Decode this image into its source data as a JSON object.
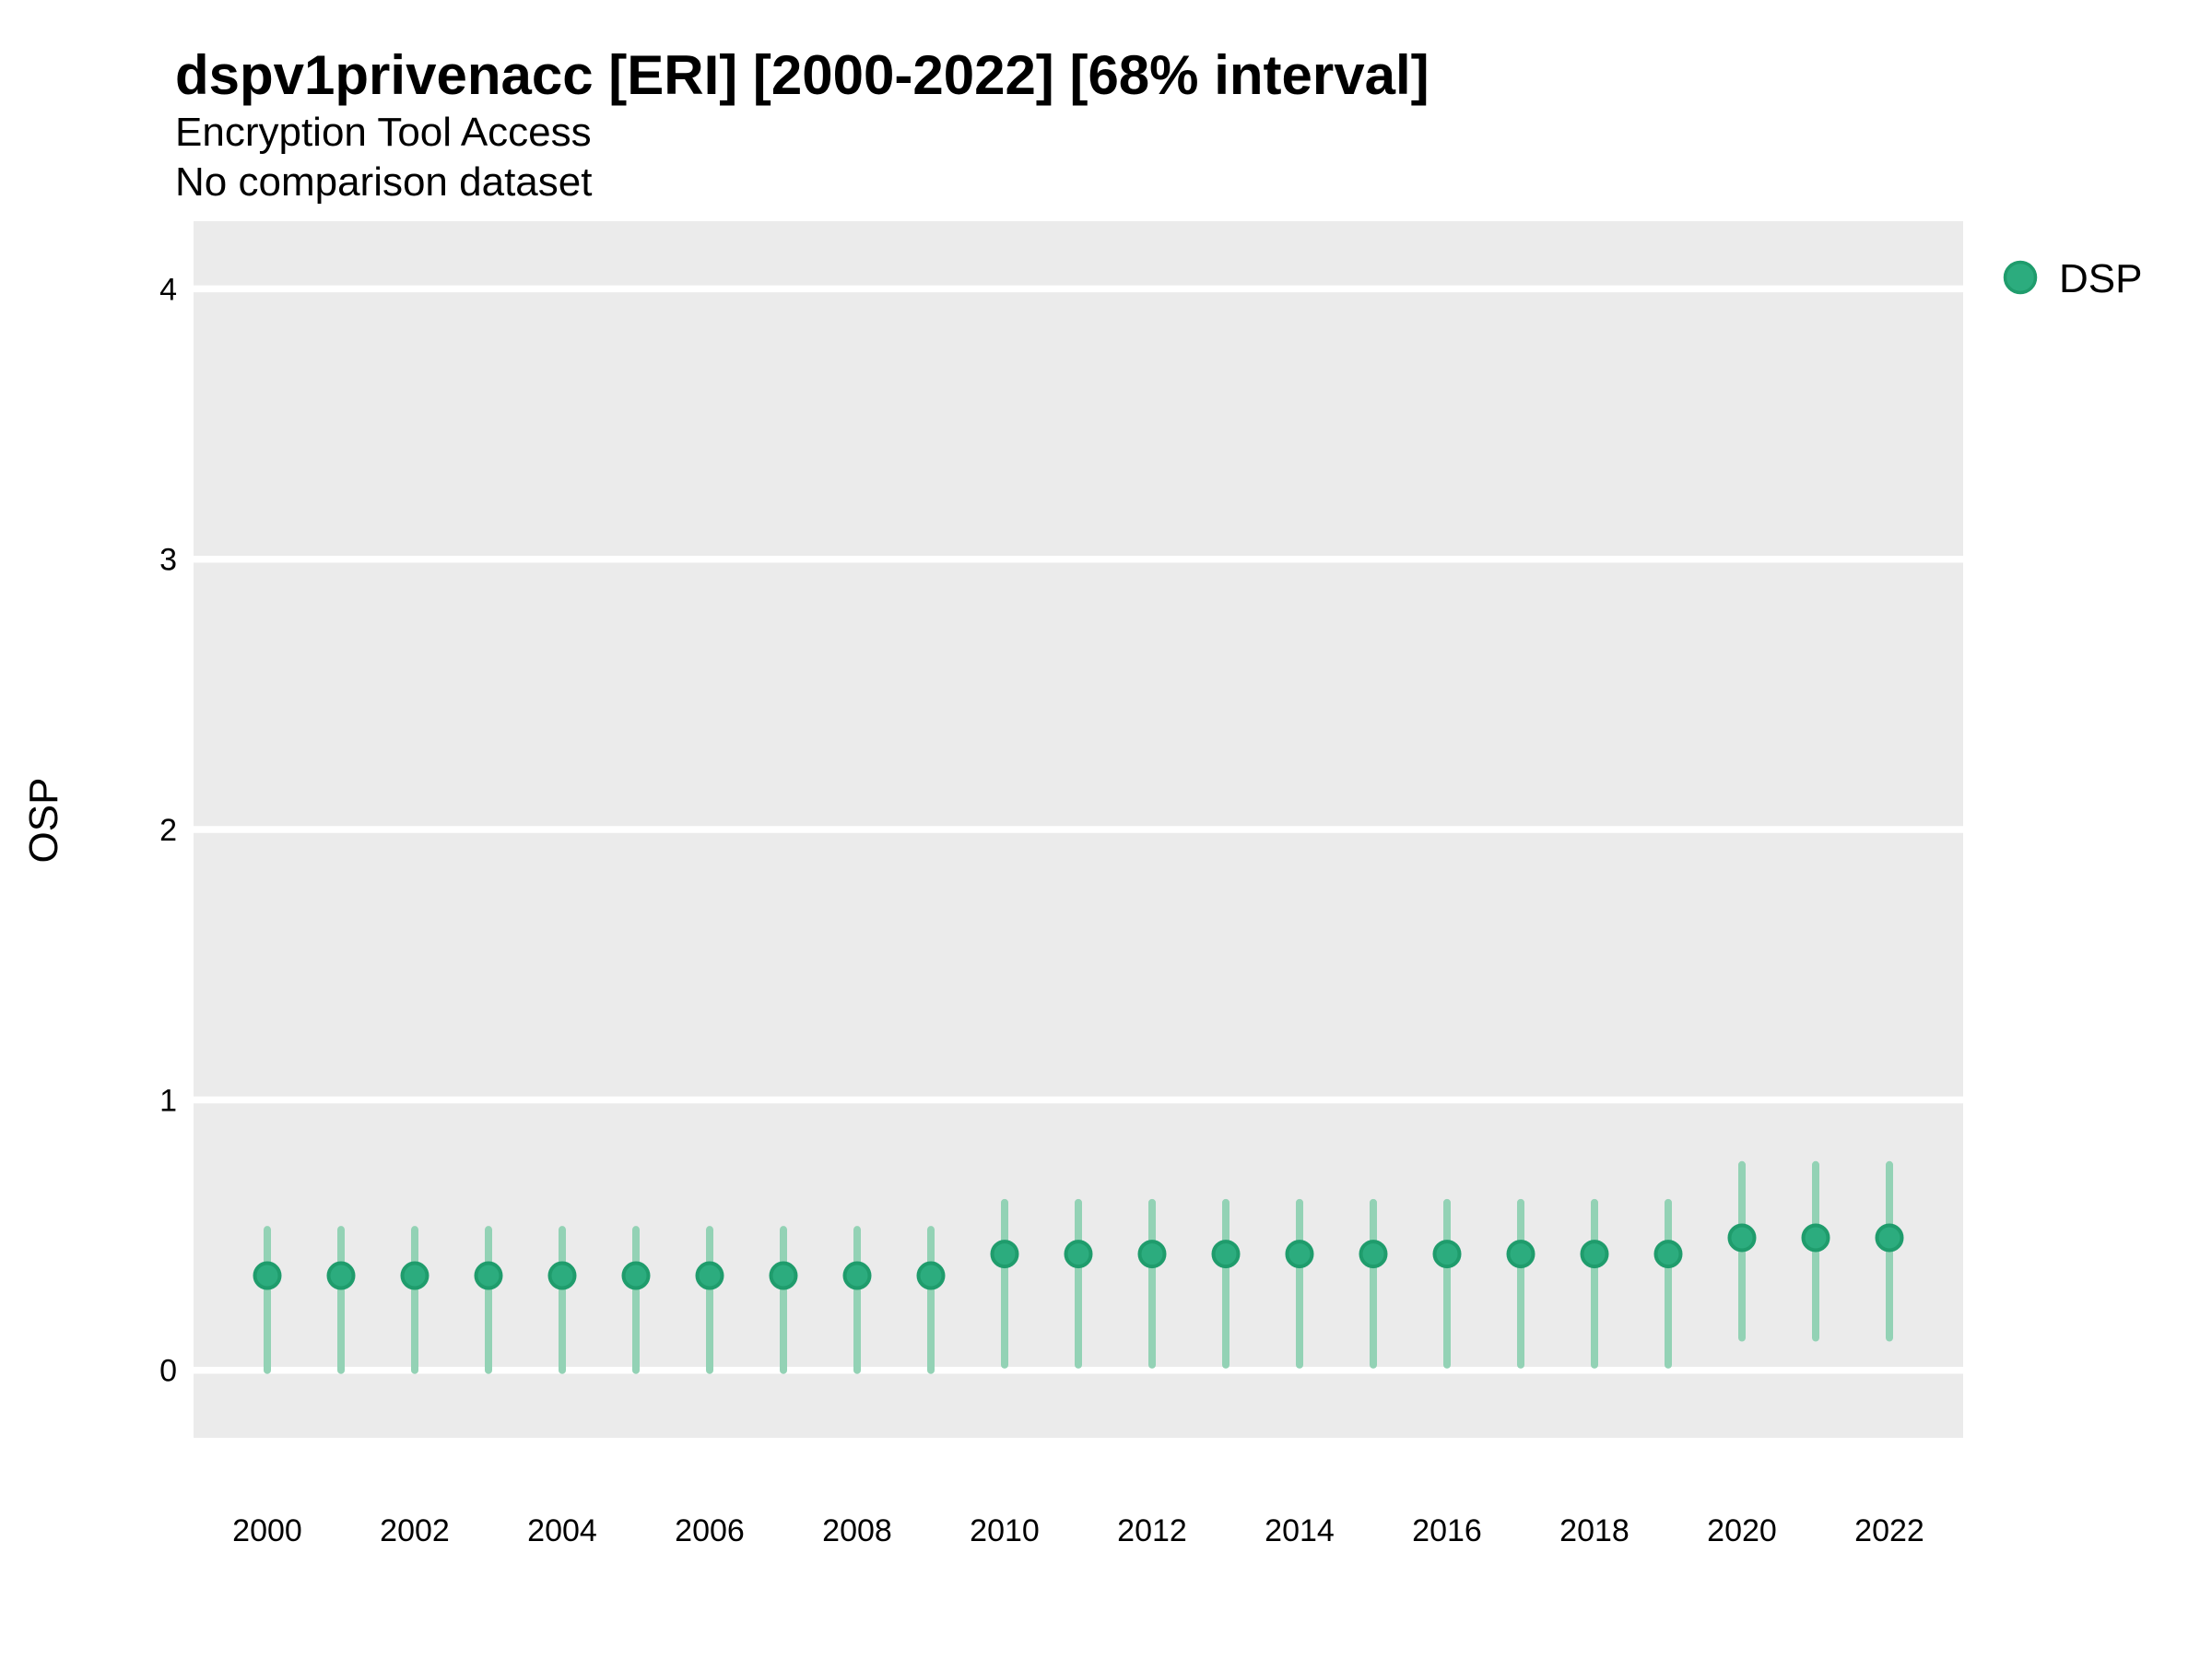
{
  "header": {
    "title": "dspv1privenacc [ERI] [2000-2022] [68% interval]",
    "subtitle": "Encryption Tool Access",
    "subtitle2": "No comparison dataset"
  },
  "legend": {
    "items": [
      {
        "label": "DSP",
        "marker_color": "#2CAC7E"
      }
    ]
  },
  "colors": {
    "panel_background": "#EBEBEB",
    "gridline": "#FFFFFF",
    "point_fill": "#2CAC7E",
    "point_stroke": "#1F9C6C",
    "interval_bar": "#93D2B5",
    "text": "#000000"
  },
  "chart_data": {
    "type": "scatter",
    "title": "dspv1privenacc [ERI] [2000-2022] [68% interval]",
    "subtitle": "Encryption Tool Access",
    "subtitle2": "No comparison dataset",
    "xlabel": "",
    "ylabel": "OSP",
    "interval": "68% interval",
    "grid": "horizontal-only",
    "legend_position": "right",
    "xlim": [
      1999,
      2023
    ],
    "ylim": [
      -0.25,
      4.25
    ],
    "y_ticks": [
      0,
      1,
      2,
      3,
      4
    ],
    "x_tick_labels": [
      2000,
      2002,
      2004,
      2006,
      2008,
      2010,
      2012,
      2014,
      2016,
      2018,
      2020,
      2022
    ],
    "series": [
      {
        "name": "DSP",
        "x": [
          2000,
          2001,
          2002,
          2003,
          2004,
          2005,
          2006,
          2007,
          2008,
          2009,
          2010,
          2011,
          2012,
          2013,
          2014,
          2015,
          2016,
          2017,
          2018,
          2019,
          2020,
          2021,
          2022
        ],
        "y": [
          0.35,
          0.35,
          0.35,
          0.35,
          0.35,
          0.35,
          0.35,
          0.35,
          0.35,
          0.35,
          0.43,
          0.43,
          0.43,
          0.43,
          0.43,
          0.43,
          0.43,
          0.43,
          0.43,
          0.43,
          0.49,
          0.49,
          0.49
        ],
        "y_lower": [
          0.0,
          0.0,
          0.0,
          0.0,
          0.0,
          0.0,
          0.0,
          0.0,
          0.0,
          0.0,
          0.02,
          0.02,
          0.02,
          0.02,
          0.02,
          0.02,
          0.02,
          0.02,
          0.02,
          0.02,
          0.12,
          0.12,
          0.12
        ],
        "y_upper": [
          0.52,
          0.52,
          0.52,
          0.52,
          0.52,
          0.52,
          0.52,
          0.52,
          0.52,
          0.52,
          0.62,
          0.62,
          0.62,
          0.62,
          0.62,
          0.62,
          0.62,
          0.62,
          0.62,
          0.62,
          0.76,
          0.76,
          0.76
        ]
      }
    ]
  }
}
